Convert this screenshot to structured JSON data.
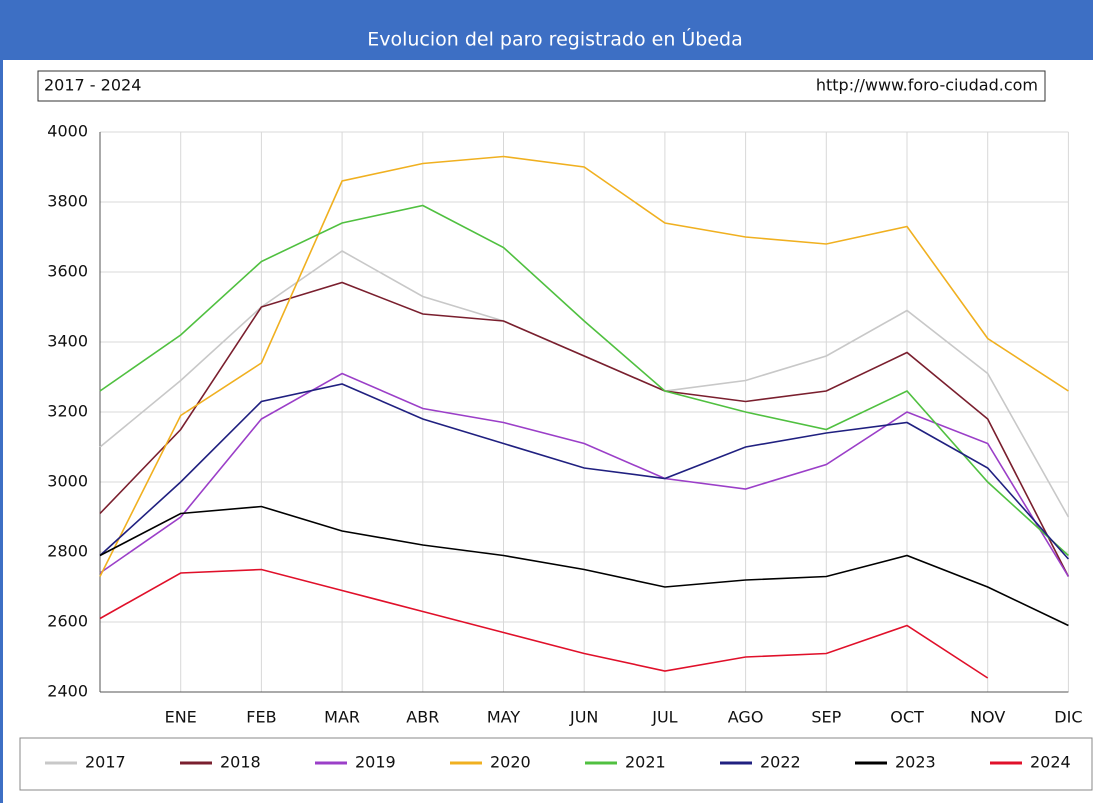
{
  "chart_data": {
    "type": "line",
    "title": "Evolucion del paro registrado en Úbeda",
    "subtitle": "2017 - 2024",
    "source": "http://www.foro-ciudad.com",
    "categories": [
      null,
      "ENE",
      "FEB",
      "MAR",
      "ABR",
      "MAY",
      "JUN",
      "JUL",
      "AGO",
      "SEP",
      "OCT",
      "NOV",
      "DIC"
    ],
    "ylim": [
      2400,
      4000
    ],
    "yticks": [
      2400,
      2600,
      2800,
      3000,
      3200,
      3400,
      3600,
      3800,
      4000
    ],
    "grid": true,
    "legend": "bottom",
    "series": [
      {
        "name": "2017",
        "color": "#c8c8c8",
        "values": [
          3100,
          3290,
          3500,
          3660,
          3530,
          3460,
          3360,
          3260,
          3290,
          3360,
          3490,
          3310,
          2900
        ]
      },
      {
        "name": "2018",
        "color": "#7a1f2e",
        "values": [
          2910,
          3150,
          3500,
          3570,
          3480,
          3460,
          3360,
          3260,
          3230,
          3260,
          3370,
          3180,
          2730
        ]
      },
      {
        "name": "2019",
        "color": "#9b3fc8",
        "values": [
          2740,
          2900,
          3180,
          3310,
          3210,
          3170,
          3110,
          3010,
          2980,
          3050,
          3200,
          3110,
          2730
        ]
      },
      {
        "name": "2020",
        "color": "#f0b020",
        "values": [
          2730,
          3190,
          3340,
          3860,
          3910,
          3930,
          3900,
          3740,
          3700,
          3680,
          3730,
          3410,
          3260
        ]
      },
      {
        "name": "2021",
        "color": "#50c040",
        "values": [
          3260,
          3420,
          3630,
          3740,
          3790,
          3670,
          3460,
          3260,
          3200,
          3150,
          3260,
          3000,
          2790
        ]
      },
      {
        "name": "2022",
        "color": "#202080",
        "values": [
          2790,
          3000,
          3230,
          3280,
          3180,
          3110,
          3040,
          3010,
          3100,
          3140,
          3170,
          3040,
          2780
        ]
      },
      {
        "name": "2023",
        "color": "#000000",
        "values": [
          2790,
          2910,
          2930,
          2860,
          2820,
          2790,
          2750,
          2700,
          2720,
          2730,
          2790,
          2700,
          2590
        ]
      },
      {
        "name": "2024",
        "color": "#e0102a",
        "values": [
          2610,
          2740,
          2750,
          2690,
          2630,
          2570,
          2510,
          2460,
          2500,
          2510,
          2590,
          2440,
          null
        ]
      }
    ]
  }
}
